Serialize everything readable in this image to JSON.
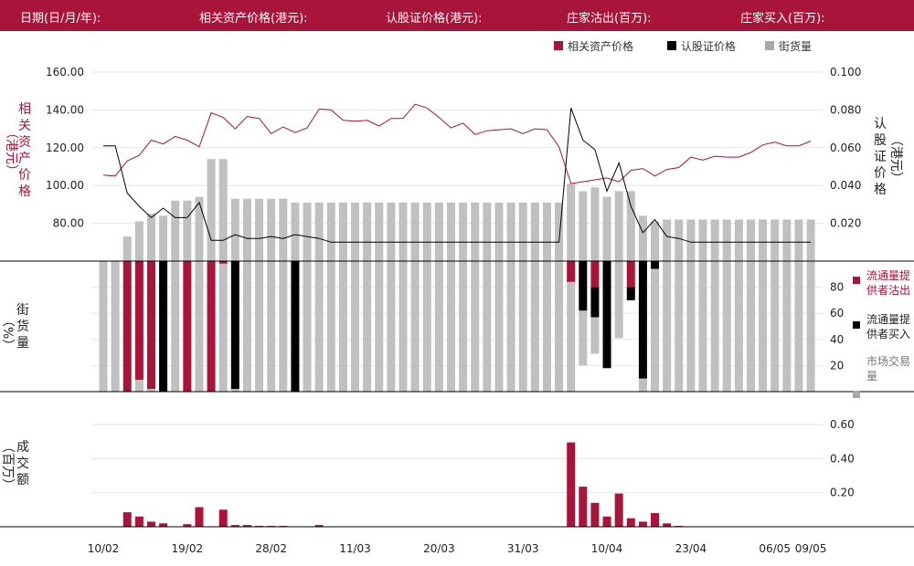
{
  "header": {
    "date_label": "日期(日/月/年):",
    "underlying_label": "相关资产价格(港元):",
    "warrant_label": "认股证价格(港元):",
    "sell_label": "庄家沽出(百万):",
    "buy_label": "庄家买入(百万):"
  },
  "colors": {
    "crimson": "#a8143a",
    "black": "#000000",
    "grey": "#c0c0c0",
    "header_bg": "#a8143a"
  },
  "chart_data": [
    {
      "type": "line",
      "panel": "price",
      "legend": [
        "相关资产价格",
        "认股证价格",
        "街货量"
      ],
      "y_left_label": [
        "相",
        "关",
        "资",
        "产",
        "价",
        "格",
        "（港元）"
      ],
      "y_right_label": [
        "认",
        "股",
        "证",
        "价",
        "格",
        "（港元）"
      ],
      "y_left_ticks": [
        "160.00",
        "140.00",
        "120.00",
        "100.00",
        "80.00"
      ],
      "y_right_ticks": [
        "0.100",
        "0.080",
        "0.060",
        "0.040",
        "0.020"
      ],
      "y_left_range": [
        60,
        160
      ],
      "y_right_range": [
        0,
        0.1
      ],
      "series": [
        {
          "name": "相关资产价格",
          "axis": "left",
          "values": [
            105.5,
            105,
            113,
            116,
            124,
            122,
            126,
            124,
            120.5,
            138.5,
            136,
            130,
            136.5,
            135.5,
            127.5,
            131,
            128,
            130.5,
            140.5,
            140,
            134.5,
            134,
            134.5,
            131.5,
            135.5,
            135.5,
            143,
            141,
            136,
            130.5,
            133,
            127,
            129,
            129.5,
            130,
            127.5,
            130,
            129.5,
            120.5,
            101,
            102,
            103,
            104,
            102,
            108,
            109,
            105,
            108.5,
            109.5,
            115,
            113.5,
            115.5,
            115,
            115,
            117.5,
            121.5,
            123,
            121,
            121,
            123.5
          ]
        },
        {
          "name": "认股证价格",
          "axis": "right",
          "values": [
            0.061,
            0.061,
            0.036,
            0.029,
            0.023,
            0.028,
            0.023,
            0.023,
            0.031,
            0.011,
            0.011,
            0.014,
            0.012,
            0.012,
            0.013,
            0.012,
            0.014,
            0.013,
            0.012,
            0.01,
            0.01,
            0.01,
            0.01,
            0.01,
            0.01,
            0.01,
            0.01,
            0.01,
            0.01,
            0.01,
            0.01,
            0.01,
            0.01,
            0.01,
            0.01,
            0.01,
            0.01,
            0.01,
            0.01,
            0.081,
            0.064,
            0.059,
            0.037,
            0.052,
            0.029,
            0.015,
            0.022,
            0.013,
            0.012,
            0.01,
            0.01,
            0.01,
            0.01,
            0.01,
            0.01,
            0.01,
            0.01,
            0.01,
            0.01,
            0.01
          ]
        }
      ],
      "outstanding_pct_values": [
        0,
        0,
        13,
        21,
        25,
        24,
        32,
        32,
        34,
        54,
        54,
        33,
        33,
        33,
        33,
        33,
        31,
        31,
        31,
        31,
        31,
        31,
        31,
        31,
        31,
        31,
        31,
        31,
        31,
        31,
        31,
        31,
        31,
        31,
        31,
        31,
        31,
        31,
        31,
        41,
        37,
        39,
        34,
        37,
        37,
        24,
        21,
        22,
        22,
        22,
        22,
        22,
        22,
        22,
        22,
        22,
        22,
        22,
        22,
        22
      ]
    },
    {
      "type": "bar",
      "panel": "liquidity",
      "y_label": [
        "街",
        "货",
        "量",
        "（%）"
      ],
      "y_ticks": [
        "80",
        "60",
        "40",
        "20"
      ],
      "y_range": [
        0,
        100
      ],
      "legend": [
        "流通量提供者沽出",
        "流通量提供者买入",
        "市场交易量"
      ],
      "series": [
        {
          "name": "流通量提供者沽出",
          "values": [
            0,
            0,
            100,
            91,
            98,
            0,
            0,
            100,
            0,
            100,
            2,
            0,
            0,
            0,
            0,
            0,
            0,
            0,
            0,
            0,
            0,
            0,
            0,
            0,
            0,
            0,
            0,
            0,
            0,
            0,
            0,
            0,
            0,
            0,
            0,
            0,
            0,
            0,
            0,
            16,
            0,
            20,
            0,
            0,
            20,
            0,
            0,
            0,
            0,
            0,
            0,
            0,
            0,
            0,
            0,
            0,
            0,
            0,
            0,
            0
          ]
        },
        {
          "name": "流通量提供者买入",
          "values": [
            0,
            0,
            0,
            0,
            0,
            100,
            0,
            0,
            0,
            0,
            0,
            98,
            0,
            0,
            0,
            0,
            100,
            0,
            0,
            0,
            0,
            0,
            0,
            0,
            0,
            0,
            0,
            0,
            0,
            0,
            0,
            0,
            0,
            0,
            0,
            0,
            0,
            0,
            0,
            0,
            38,
            23,
            82,
            0,
            10,
            90,
            6,
            0,
            0,
            0,
            0,
            0,
            0,
            0,
            0,
            0,
            0,
            0,
            0,
            0
          ]
        },
        {
          "name": "市场交易量",
          "values": [
            100,
            100,
            0,
            9,
            2,
            0,
            100,
            0,
            100,
            0,
            98,
            2,
            100,
            100,
            100,
            100,
            0,
            100,
            100,
            100,
            100,
            100,
            100,
            100,
            100,
            100,
            100,
            100,
            100,
            100,
            100,
            100,
            100,
            100,
            100,
            100,
            100,
            100,
            100,
            84,
            42,
            28,
            0,
            59,
            0,
            12,
            94,
            100,
            100,
            100,
            100,
            100,
            100,
            100,
            100,
            100,
            100,
            100,
            100,
            100
          ]
        }
      ]
    },
    {
      "type": "bar",
      "panel": "turnover",
      "y_label": [
        "成",
        "交",
        "额",
        "（百万）"
      ],
      "y_ticks": [
        "0.60",
        "0.40",
        "0.20"
      ],
      "y_range": [
        0,
        0.7
      ],
      "series": [
        {
          "name": "成交额",
          "values": [
            0,
            0,
            0.085,
            0.06,
            0.03,
            0.02,
            0,
            0.015,
            0.115,
            0,
            0.1,
            0.01,
            0.01,
            0.005,
            0.005,
            0.005,
            0,
            0,
            0.01,
            0,
            0,
            0,
            0,
            0,
            0,
            0,
            0,
            0,
            0,
            0,
            0,
            0,
            0,
            0,
            0,
            0,
            0,
            0,
            0,
            0.495,
            0.235,
            0.14,
            0.06,
            0.195,
            0.05,
            0.03,
            0.08,
            0.02,
            0.005,
            0,
            0,
            0,
            0,
            0,
            0,
            0,
            0,
            0,
            0,
            0
          ]
        }
      ]
    }
  ],
  "x_axis": {
    "tick_labels": [
      "10/02",
      "19/02",
      "28/02",
      "11/03",
      "20/03",
      "31/03",
      "10/04",
      "23/04",
      "06/05",
      "09/05"
    ],
    "tick_index": [
      0,
      7,
      14,
      21,
      28,
      35,
      42,
      49,
      56,
      59
    ]
  }
}
